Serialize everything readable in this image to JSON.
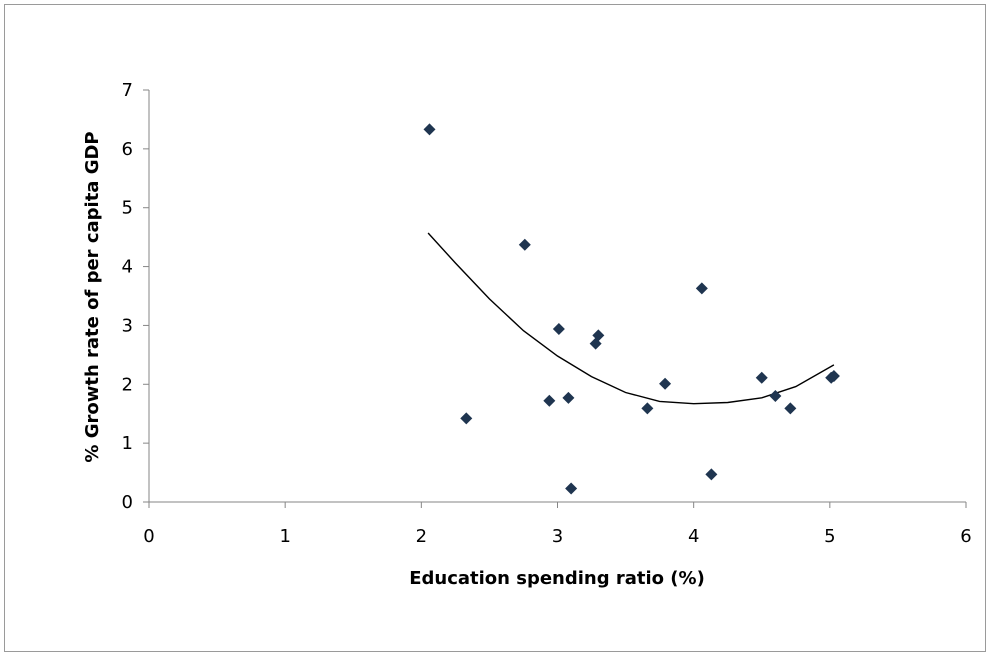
{
  "chart_data": {
    "type": "scatter",
    "title": "",
    "xlabel": "Education spending ratio (%)",
    "ylabel": "% Growth rate of per capita GDP",
    "xlim": [
      0,
      6
    ],
    "ylim": [
      0,
      7
    ],
    "xticks": [
      0,
      1,
      2,
      3,
      4,
      5,
      6
    ],
    "yticks": [
      0,
      1,
      2,
      3,
      4,
      5,
      6,
      7
    ],
    "grid": false,
    "legend": "none",
    "marker_color": "#1f3550",
    "trend_color": "#000000",
    "points": [
      {
        "x": 2.06,
        "y": 6.33
      },
      {
        "x": 2.33,
        "y": 1.42
      },
      {
        "x": 2.76,
        "y": 4.37
      },
      {
        "x": 2.94,
        "y": 1.72
      },
      {
        "x": 3.01,
        "y": 2.94
      },
      {
        "x": 3.08,
        "y": 1.77
      },
      {
        "x": 3.1,
        "y": 0.23
      },
      {
        "x": 3.28,
        "y": 2.69
      },
      {
        "x": 3.3,
        "y": 2.83
      },
      {
        "x": 3.66,
        "y": 1.59
      },
      {
        "x": 3.79,
        "y": 2.01
      },
      {
        "x": 4.06,
        "y": 3.63
      },
      {
        "x": 4.13,
        "y": 0.47
      },
      {
        "x": 4.5,
        "y": 2.11
      },
      {
        "x": 4.6,
        "y": 1.8
      },
      {
        "x": 4.71,
        "y": 1.59
      },
      {
        "x": 5.01,
        "y": 2.11
      },
      {
        "x": 5.03,
        "y": 2.14
      }
    ],
    "trendline": {
      "type": "polynomial-2",
      "x": [
        2.05,
        2.25,
        2.5,
        2.75,
        3.0,
        3.25,
        3.5,
        3.75,
        4.0,
        4.25,
        4.5,
        4.75,
        5.03
      ],
      "y": [
        4.57,
        4.06,
        3.45,
        2.91,
        2.48,
        2.13,
        1.86,
        1.71,
        1.67,
        1.69,
        1.77,
        1.96,
        2.33
      ]
    }
  }
}
